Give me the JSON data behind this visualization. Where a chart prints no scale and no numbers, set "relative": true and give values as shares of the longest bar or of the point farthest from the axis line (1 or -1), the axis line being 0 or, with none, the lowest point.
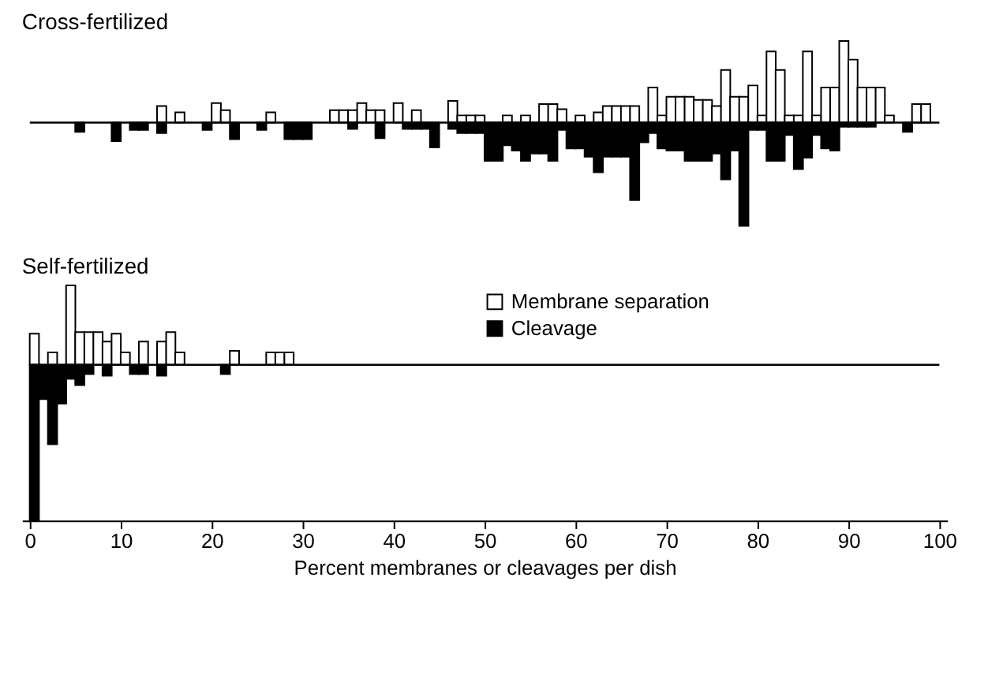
{
  "chart_data": [
    {
      "type": "bar",
      "title": "Cross-fertilized",
      "relative": true,
      "xlim": [
        0,
        100
      ],
      "tick_labels": false,
      "x": [
        0.5,
        1.5,
        2.5,
        3.5,
        4.5,
        5.5,
        6.5,
        7.5,
        8.5,
        9.5,
        10.5,
        11.5,
        12.5,
        13.5,
        14.5,
        15.5,
        16.5,
        17.5,
        18.5,
        19.5,
        20.5,
        21.5,
        22.5,
        23.5,
        24.5,
        25.5,
        26.5,
        27.5,
        28.5,
        29.5,
        30.5,
        31.5,
        32.5,
        33.5,
        34.5,
        35.5,
        36.5,
        37.5,
        38.5,
        39.5,
        40.5,
        41.5,
        42.5,
        43.5,
        44.5,
        45.5,
        46.5,
        47.5,
        48.5,
        49.5,
        50.5,
        51.5,
        52.5,
        53.5,
        54.5,
        55.5,
        56.5,
        57.5,
        58.5,
        59.5,
        60.5,
        61.5,
        62.5,
        63.5,
        64.5,
        65.5,
        66.5,
        67.5,
        68.5,
        69.5,
        70.5,
        71.5,
        72.5,
        73.5,
        74.5,
        75.5,
        76.5,
        77.5,
        78.5,
        79.5,
        80.5,
        81.5,
        82.5,
        83.5,
        84.5,
        85.5,
        86.5,
        87.5,
        88.5,
        89.5,
        90.5,
        91.5,
        92.5,
        93.5,
        94.5,
        95.5,
        96.5,
        97.5,
        98.5,
        99.5
      ],
      "series": [
        {
          "color": "#ffffff",
          "values": [
            0,
            0,
            0,
            0,
            0,
            0,
            0,
            0,
            0,
            0,
            0,
            0,
            0,
            0,
            0.16,
            0,
            0.1,
            0,
            0,
            0,
            0.19,
            0.12,
            0,
            0,
            0,
            0,
            0.1,
            0,
            0,
            0,
            0,
            0,
            0,
            0.12,
            0.12,
            0.12,
            0.19,
            0.12,
            0.12,
            0,
            0.19,
            0,
            0.12,
            0,
            0,
            0,
            0.21,
            0.07,
            0.07,
            0.07,
            0,
            0,
            0.07,
            0,
            0.07,
            0,
            0.18,
            0.18,
            0.13,
            0,
            0.07,
            0,
            0.1,
            0.16,
            0.16,
            0.16,
            0.16,
            0,
            0.34,
            0.07,
            0.25,
            0.25,
            0.25,
            0.22,
            0.22,
            0.16,
            0.51,
            0.25,
            0.25,
            0.36,
            0.07,
            0.69,
            0.51,
            0.07,
            0.07,
            0.69,
            0.07,
            0.34,
            0.34,
            0.79,
            0.61,
            0.34,
            0.34,
            0.34,
            0.07,
            0,
            0,
            0.18,
            0.18,
            0
          ]
        },
        {
          "color": "#000000",
          "values": [
            0,
            0,
            0,
            0,
            0,
            -0.09,
            0,
            0,
            0,
            -0.18,
            0,
            -0.07,
            -0.07,
            0,
            -0.1,
            0,
            0,
            0,
            0,
            -0.07,
            0,
            0,
            -0.16,
            0,
            0,
            -0.07,
            0,
            0,
            -0.16,
            -0.16,
            -0.16,
            0,
            0,
            0,
            0,
            -0.06,
            0,
            0,
            -0.15,
            0,
            0,
            -0.06,
            -0.06,
            -0.06,
            -0.24,
            0,
            -0.06,
            -0.1,
            -0.1,
            -0.1,
            -0.37,
            -0.37,
            -0.22,
            -0.27,
            -0.37,
            -0.3,
            -0.3,
            -0.37,
            -0.07,
            -0.25,
            -0.25,
            -0.33,
            -0.48,
            -0.33,
            -0.33,
            -0.33,
            -0.75,
            -0.19,
            -0.1,
            -0.25,
            -0.27,
            -0.27,
            -0.37,
            -0.37,
            -0.37,
            -0.3,
            -0.55,
            -0.27,
            -1,
            -0.07,
            -0.07,
            -0.37,
            -0.37,
            -0.12,
            -0.45,
            -0.34,
            -0.12,
            -0.25,
            -0.27,
            -0.04,
            -0.04,
            -0.04,
            -0.04,
            0,
            0,
            0,
            -0.09,
            0,
            0,
            0
          ]
        }
      ]
    },
    {
      "type": "bar",
      "title": "Self-fertilized",
      "relative": true,
      "xlim": [
        0,
        100
      ],
      "xticks": [
        0,
        10,
        20,
        30,
        40,
        50,
        60,
        70,
        80,
        90,
        100
      ],
      "xlabel": "Percent membranes or cleavages per dish",
      "tick_labels": "x",
      "legend": "top",
      "x": [
        0.5,
        1.5,
        2.5,
        3.5,
        4.5,
        5.5,
        6.5,
        7.5,
        8.5,
        9.5,
        10.5,
        11.5,
        12.5,
        13.5,
        14.5,
        15.5,
        16.5,
        17.5,
        18.5,
        19.5,
        20.5,
        21.5,
        22.5,
        23.5,
        24.5,
        25.5,
        26.5,
        27.5,
        28.5,
        29.5
      ],
      "series": [
        {
          "name": "Membrane separation",
          "color": "#ffffff",
          "values": [
            0.2,
            0,
            0.08,
            0,
            0.51,
            0.21,
            0.21,
            0.21,
            0.15,
            0.2,
            0.08,
            0,
            0.15,
            0,
            0.15,
            0.21,
            0.08,
            0,
            0,
            0,
            0,
            0,
            0.09,
            0,
            0,
            0,
            0.08,
            0.08,
            0.08,
            0
          ]
        },
        {
          "name": "Cleavage",
          "color": "#000000",
          "values": [
            -1,
            -0.22,
            -0.51,
            -0.25,
            -0.09,
            -0.13,
            -0.06,
            0,
            -0.07,
            0,
            0,
            -0.06,
            -0.06,
            0,
            -0.07,
            0,
            0,
            0,
            0,
            0,
            0,
            -0.06,
            0,
            0,
            0,
            0,
            0,
            0,
            0,
            0
          ]
        }
      ]
    }
  ]
}
